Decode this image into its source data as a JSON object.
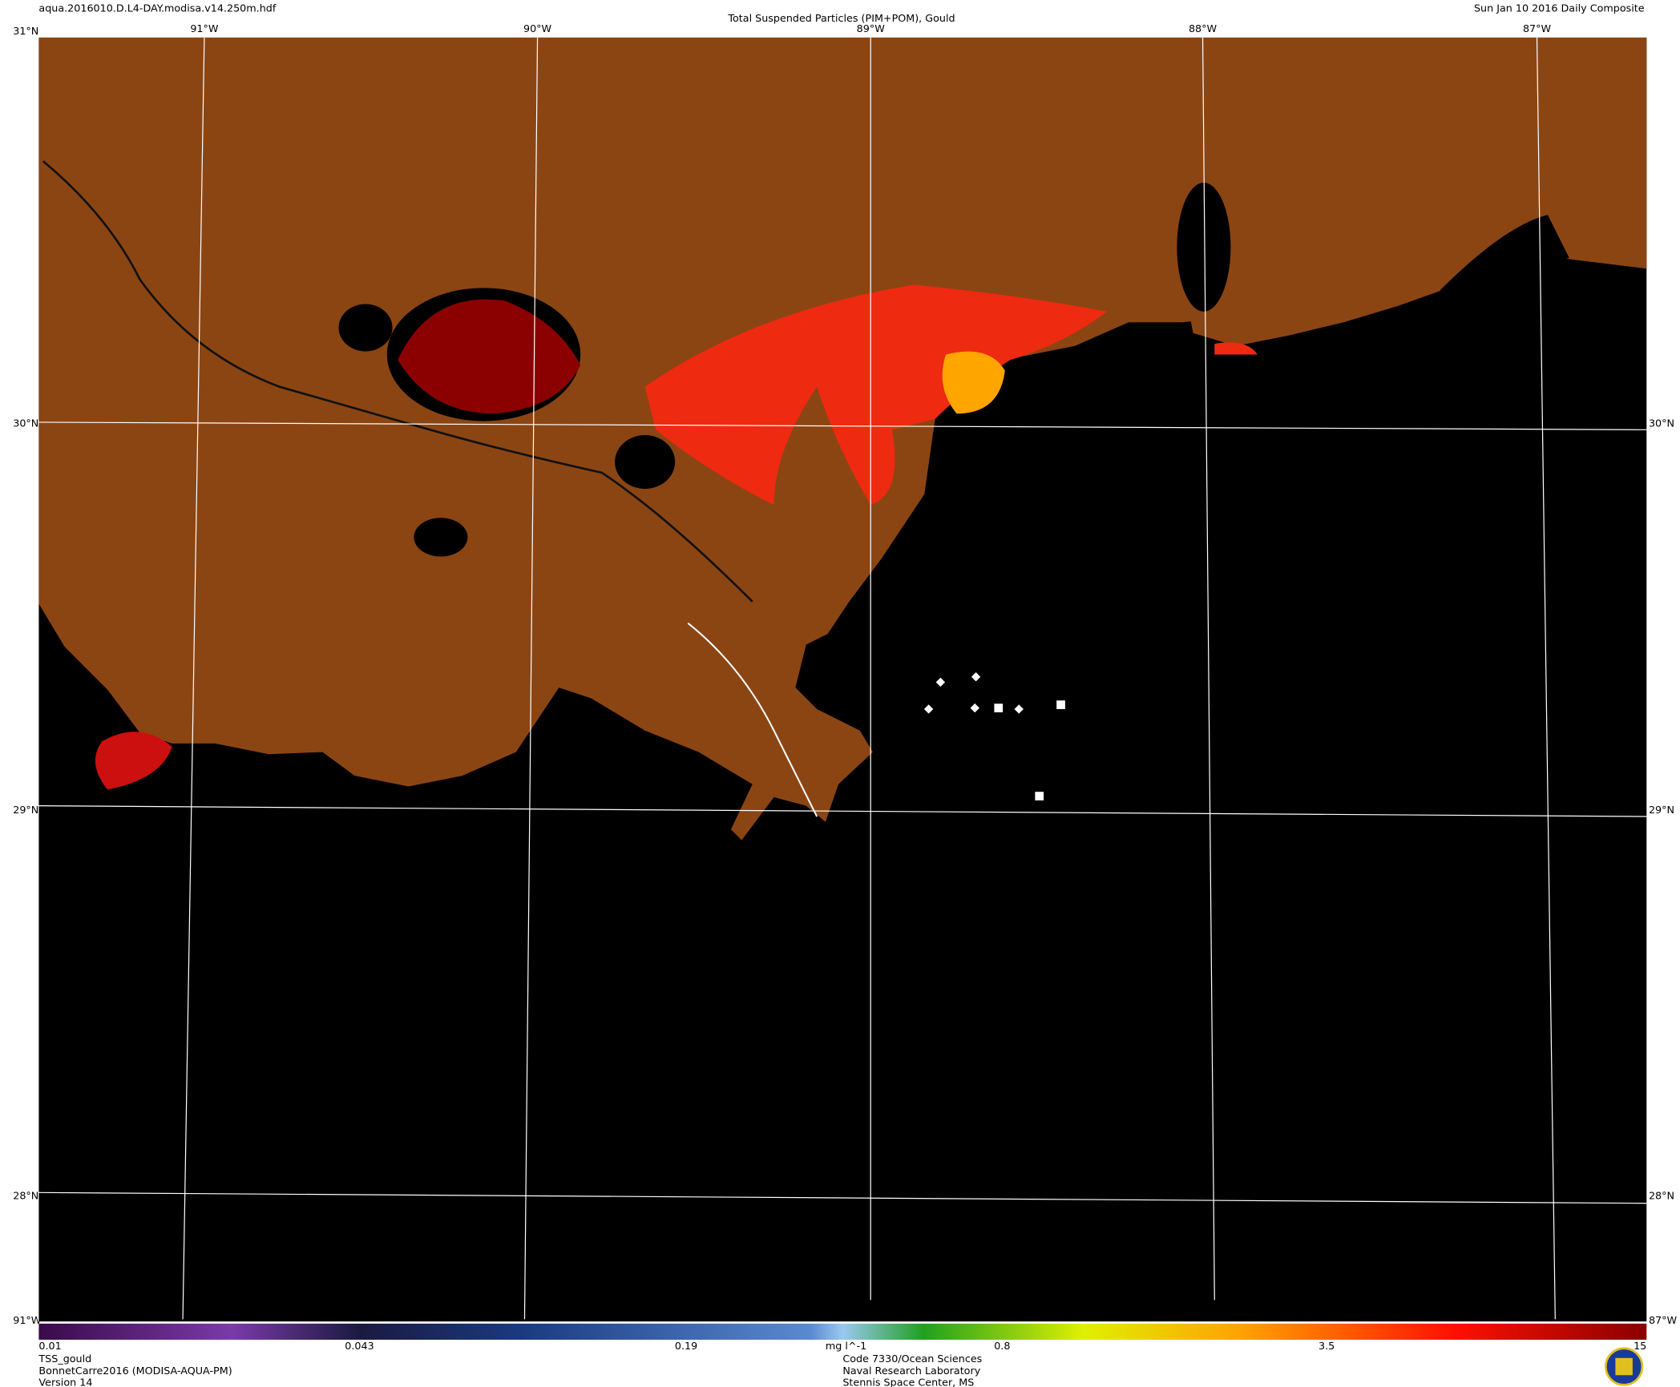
{
  "header": {
    "filename": "aqua.2016010.D.L4-DAY.modisa.v14.250m.hdf",
    "title": "Total Suspended Particles (PIM+POM), Gould",
    "date": "Sun Jan 10 2016 Daily Composite"
  },
  "grid": {
    "lat": [
      "31°N",
      "30°N",
      "29°N",
      "28°N"
    ],
    "lon": [
      "91°W",
      "90°W",
      "89°W",
      "88°W",
      "87°W"
    ]
  },
  "colorbar": {
    "ticks": [
      0.01,
      0.043,
      0.19,
      0.8,
      3.5,
      15
    ],
    "unit": "mg l^-1"
  },
  "footer": {
    "left": [
      "TSS_gould",
      "BonnetCarre2016 (MODISA-AQUA-PM)",
      "Version 14"
    ],
    "center": [
      "Code 7330/Ocean Sciences",
      "Naval Research Laboratory",
      "Stennis Space Center, MS"
    ]
  }
}
